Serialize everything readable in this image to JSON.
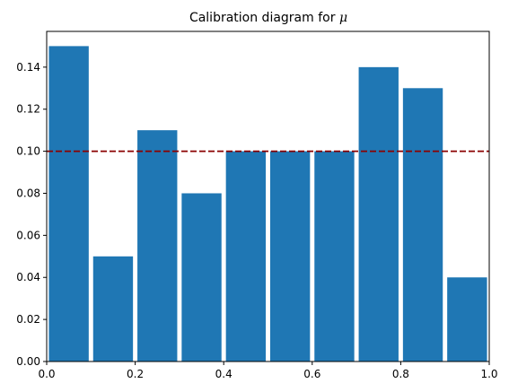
{
  "chart_data": {
    "type": "bar",
    "title": "Calibration diagram for ",
    "title_math": "μ",
    "xlabel": "",
    "ylabel": "",
    "xlim": [
      0.0,
      1.0
    ],
    "ylim": [
      0.0,
      0.157
    ],
    "bin_width": 0.1,
    "bar_width_fraction": 0.9,
    "x": [
      0.0,
      0.1,
      0.2,
      0.3,
      0.4,
      0.5,
      0.6,
      0.7,
      0.8,
      0.9
    ],
    "values": [
      0.15,
      0.05,
      0.11,
      0.08,
      0.1,
      0.1,
      0.1,
      0.14,
      0.13,
      0.04
    ],
    "x_ticks": [
      0.0,
      0.2,
      0.4,
      0.6,
      0.8,
      1.0
    ],
    "x_tick_labels": [
      "0.0",
      "0.2",
      "0.4",
      "0.6",
      "0.8",
      "1.0"
    ],
    "y_ticks": [
      0.0,
      0.02,
      0.04,
      0.06,
      0.08,
      0.1,
      0.12,
      0.14
    ],
    "y_tick_labels": [
      "0.00",
      "0.02",
      "0.04",
      "0.06",
      "0.08",
      "0.10",
      "0.12",
      "0.14"
    ],
    "reference_line": {
      "y": 0.1,
      "style": "dashed"
    },
    "grid": false,
    "legend": "none",
    "colors": {
      "bar": "#1f77b4",
      "reference_line": "#8b0000",
      "axes": "#000000"
    }
  }
}
